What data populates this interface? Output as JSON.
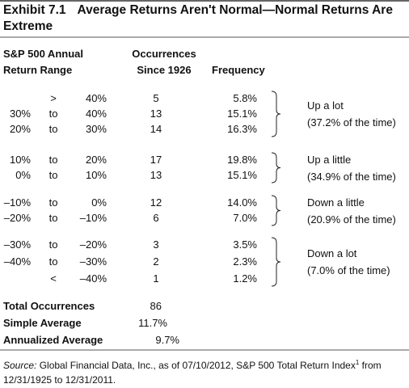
{
  "header": {
    "exhibit": "Exhibit 7.1",
    "title": "Average Returns Aren't Normal—Normal Returns Are Extreme"
  },
  "table": {
    "columns": [
      [
        "S&P 500 Annual",
        "Return Range"
      ],
      [
        "Occurrences",
        "Since 1926"
      ],
      [
        "Frequency"
      ]
    ],
    "groups": [
      {
        "label": "Up a lot",
        "note": "(37.2% of the time)",
        "rows": [
          {
            "sep": ">",
            "high": "40%",
            "occurrences": 5,
            "frequency": "5.8%"
          },
          {
            "low": "30%",
            "sep": "to",
            "high": "40%",
            "occurrences": 13,
            "frequency": "15.1%"
          },
          {
            "low": "20%",
            "sep": "to",
            "high": "30%",
            "occurrences": 14,
            "frequency": "16.3%"
          }
        ]
      },
      {
        "label": "Up a little",
        "note": "(34.9% of the time)",
        "rows": [
          {
            "low": "10%",
            "sep": "to",
            "high": "20%",
            "occurrences": 17,
            "frequency": "19.8%"
          },
          {
            "low": "0%",
            "sep": "to",
            "high": "10%",
            "occurrences": 13,
            "frequency": "15.1%"
          }
        ]
      },
      {
        "label": "Down a little",
        "note": "(20.9% of the time)",
        "rows": [
          {
            "low": "–10%",
            "sep": "to",
            "high": "0%",
            "occurrences": 12,
            "frequency": "14.0%"
          },
          {
            "low": "–20%",
            "sep": "to",
            "high": "–10%",
            "occurrences": 6,
            "frequency": "7.0%"
          }
        ]
      },
      {
        "label": "Down a lot",
        "note": "(7.0% of the time)",
        "rows": [
          {
            "low": "–30%",
            "sep": "to",
            "high": "–20%",
            "occurrences": 3,
            "frequency": "3.5%"
          },
          {
            "low": "–40%",
            "sep": "to",
            "high": "–30%",
            "occurrences": 2,
            "frequency": "2.3%"
          },
          {
            "sep": "<",
            "high": "–40%",
            "occurrences": 1,
            "frequency": "1.2%"
          }
        ]
      }
    ],
    "totals": [
      {
        "label": "Total Occurrences",
        "value": "86"
      },
      {
        "label": "Simple Average",
        "value": "11.7%"
      },
      {
        "label": "Annualized Average",
        "value": "9.7%"
      }
    ]
  },
  "source": {
    "label": "Source:",
    "text": "Global Financial Data, Inc., as of 07/10/2012, S&P 500 Total Return Index",
    "superscript": "1",
    "continuation": "from 12/31/1925 to 12/31/2011."
  }
}
